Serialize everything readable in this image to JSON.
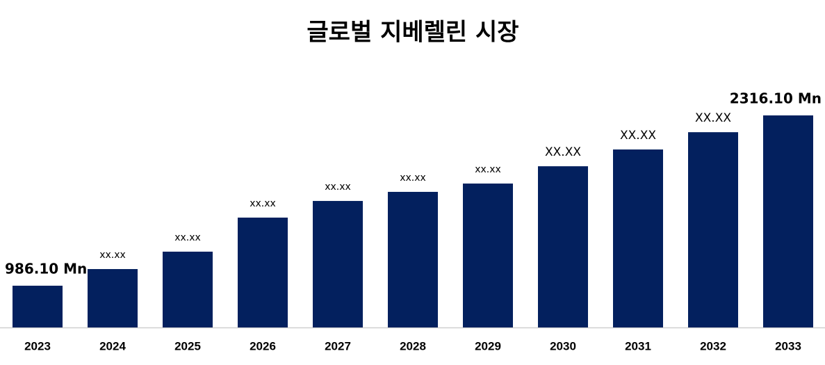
{
  "chart_data": {
    "type": "bar",
    "title": "글로벌 지베렐린 시장",
    "categories": [
      "2023",
      "2024",
      "2025",
      "2026",
      "2027",
      "2028",
      "2029",
      "2030",
      "2031",
      "2032",
      "2033"
    ],
    "values": [
      986.1,
      1116,
      1252,
      1518,
      1648,
      1719,
      1784,
      1919,
      2050,
      2185,
      2316.1
    ],
    "value_labels": [
      "986.10 Mn",
      "xx.xx",
      "xx.xx",
      "xx.xx",
      "xx.xx",
      "xx.xx",
      "xx.xx",
      "XX.XX",
      "XX.XX",
      "XX.XX",
      "2316.10 Mn"
    ],
    "color": "#03205e",
    "ylim": [
      660,
      2316.1
    ]
  }
}
